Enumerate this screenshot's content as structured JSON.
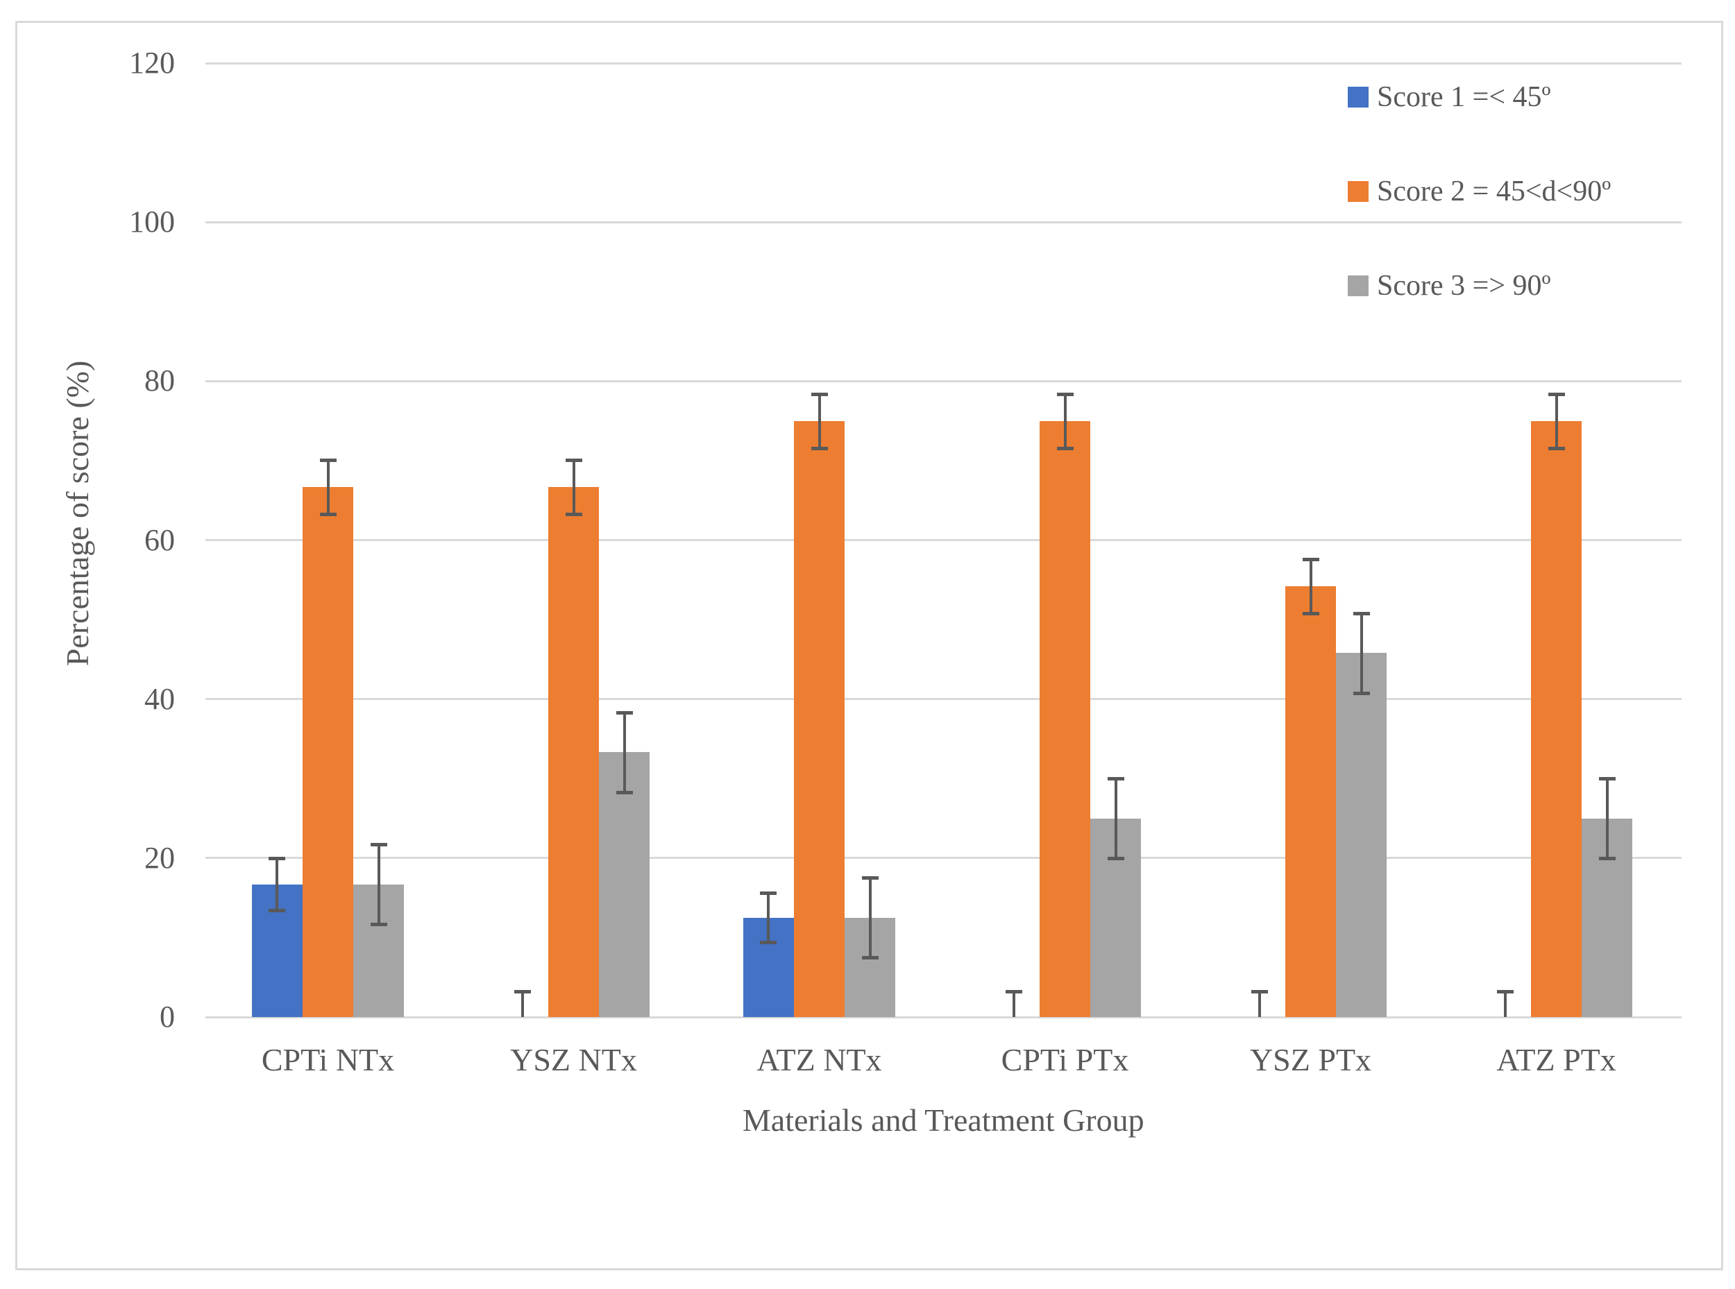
{
  "chart_data": {
    "type": "bar",
    "title": "",
    "xlabel": "Materials and Treatment Group",
    "ylabel": "Percentage of score (%)",
    "ylim": [
      0,
      120
    ],
    "yticks": [
      0,
      20,
      40,
      60,
      80,
      100,
      120
    ],
    "grid": "horizontal",
    "legend_position": "top-right",
    "categories": [
      "CPTi NTx",
      "YSZ NTx",
      "ATZ NTx",
      "CPTi PTx",
      "YSZ PTx",
      "ATZ PTx"
    ],
    "series": [
      {
        "name": "Score 1 =< 45º",
        "color": "#4472C4",
        "values": [
          16.7,
          0,
          12.5,
          0,
          0,
          0
        ],
        "errors": [
          3.3,
          3.2,
          3.1,
          3.2,
          3.2,
          3.2
        ]
      },
      {
        "name": "Score 2 = 45<d<90º",
        "color": "#ED7D31",
        "values": [
          66.7,
          66.7,
          75,
          75,
          54.2,
          75
        ],
        "errors": [
          3.4,
          3.4,
          3.4,
          3.4,
          3.4,
          3.4
        ]
      },
      {
        "name": "Score 3 => 90º",
        "color": "#A5A5A5",
        "values": [
          16.7,
          33.3,
          12.5,
          25,
          45.8,
          25
        ],
        "errors": [
          5,
          5,
          5,
          5,
          5,
          5
        ]
      }
    ],
    "error_bar_color": "#595959",
    "gridline_color": "#D9D9D9",
    "text_color": "#595959",
    "frame_color": "#D9D9D9",
    "background_color": "#FFFFFF"
  }
}
